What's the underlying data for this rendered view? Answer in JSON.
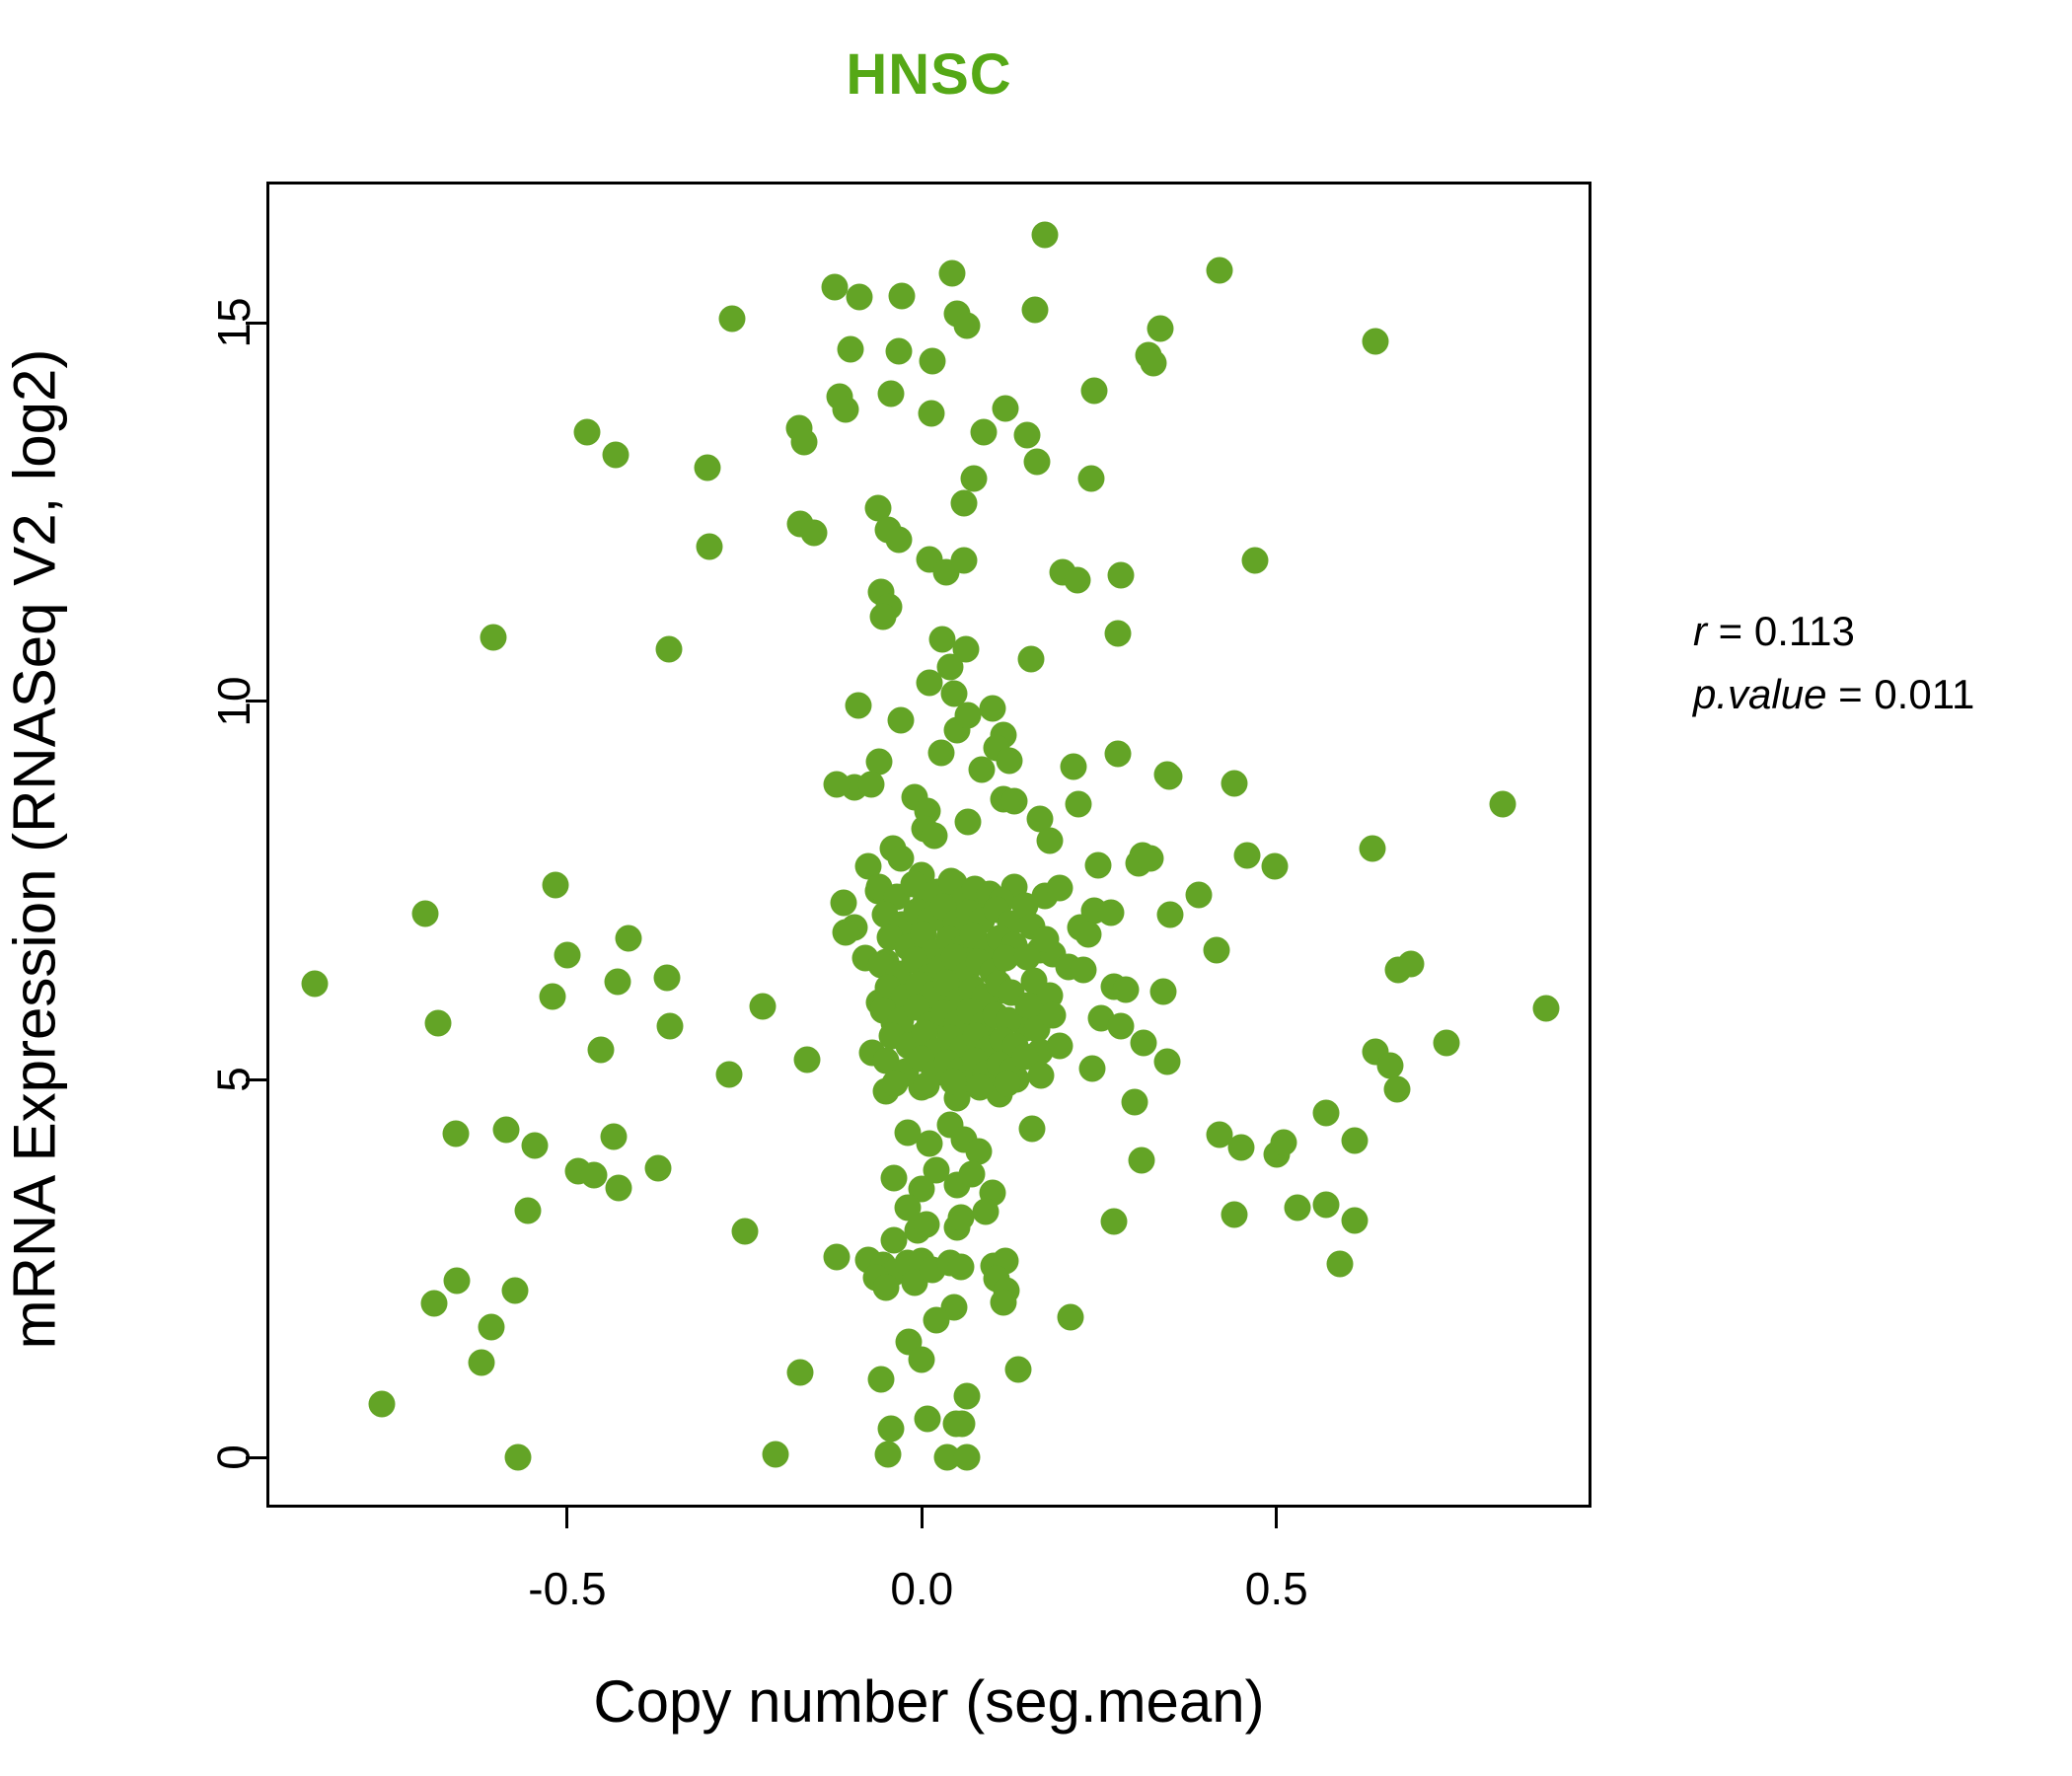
{
  "chart_data": {
    "type": "scatter",
    "title": "HNSC",
    "title_color": "#55a816",
    "xlabel": "Copy number (seg.mean)",
    "ylabel": "mRNA Expression (RNASeq V2, log2)",
    "xlim": [
      -0.92,
      0.94
    ],
    "ylim": [
      -0.62,
      16.83
    ],
    "xticks": [
      -0.5,
      0.0,
      0.5
    ],
    "xtick_labels": [
      "-0.5",
      "0.0",
      "0.5"
    ],
    "yticks": [
      0,
      5,
      10,
      15
    ],
    "ytick_labels": [
      "0",
      "5",
      "10",
      "15"
    ],
    "grid": false,
    "point_color": "#63a426",
    "annotation": {
      "line1": {
        "var": "r",
        "eq": " = ",
        "value": "0.113"
      },
      "line2": {
        "var": "p.value",
        "eq": " = ",
        "value": "0.011"
      }
    },
    "points": [
      [
        0.174,
        16.16
      ],
      [
        0.043,
        15.66
      ],
      [
        -0.123,
        15.47
      ],
      [
        -0.088,
        15.34
      ],
      [
        -0.028,
        15.36
      ],
      [
        0.159,
        15.18
      ],
      [
        -0.268,
        15.05
      ],
      [
        0.05,
        15.12
      ],
      [
        0.064,
        14.97
      ],
      [
        0.336,
        14.92
      ],
      [
        0.32,
        14.58
      ],
      [
        0.327,
        14.47
      ],
      [
        -0.1,
        14.65
      ],
      [
        -0.033,
        14.62
      ],
      [
        0.015,
        14.49
      ],
      [
        0.243,
        14.1
      ],
      [
        -0.116,
        14.02
      ],
      [
        -0.107,
        13.85
      ],
      [
        -0.044,
        14.06
      ],
      [
        0.013,
        13.8
      ],
      [
        0.42,
        15.7
      ],
      [
        0.64,
        14.75
      ],
      [
        -0.472,
        13.55
      ],
      [
        -0.432,
        13.26
      ],
      [
        -0.173,
        13.61
      ],
      [
        -0.166,
        13.42
      ],
      [
        -0.303,
        13.09
      ],
      [
        0.087,
        13.56
      ],
      [
        0.149,
        13.52
      ],
      [
        0.118,
        13.87
      ],
      [
        0.163,
        13.16
      ],
      [
        0.073,
        12.95
      ],
      [
        0.239,
        12.95
      ],
      [
        -0.062,
        12.55
      ],
      [
        -0.048,
        12.26
      ],
      [
        -0.033,
        12.13
      ],
      [
        -0.172,
        12.35
      ],
      [
        -0.152,
        12.22
      ],
      [
        -0.3,
        12.05
      ],
      [
        0.06,
        12.62
      ],
      [
        0.011,
        11.87
      ],
      [
        0.035,
        11.7
      ],
      [
        0.059,
        11.86
      ],
      [
        0.198,
        11.7
      ],
      [
        0.219,
        11.6
      ],
      [
        0.281,
        11.66
      ],
      [
        0.47,
        11.86
      ],
      [
        -0.058,
        11.44
      ],
      [
        -0.047,
        11.25
      ],
      [
        -0.055,
        11.12
      ],
      [
        0.029,
        10.82
      ],
      [
        0.062,
        10.69
      ],
      [
        0.277,
        10.9
      ],
      [
        0.154,
        10.56
      ],
      [
        -0.356,
        10.69
      ],
      [
        -0.604,
        10.84
      ],
      [
        0.01,
        10.25
      ],
      [
        0.045,
        10.1
      ],
      [
        0.1,
        9.9
      ],
      [
        -0.03,
        9.75
      ],
      [
        0.05,
        9.62
      ],
      [
        0.115,
        9.55
      ],
      [
        0.065,
        9.82
      ],
      [
        -0.09,
        9.95
      ],
      [
        0.04,
        10.45
      ],
      [
        0.028,
        9.32
      ],
      [
        0.105,
        9.38
      ],
      [
        0.124,
        9.22
      ],
      [
        0.277,
        9.31
      ],
      [
        0.346,
        9.03
      ],
      [
        0.084,
        9.09
      ],
      [
        0.214,
        9.13
      ],
      [
        0.349,
        9.0
      ],
      [
        0.441,
        8.92
      ],
      [
        -0.06,
        9.2
      ],
      [
        -0.095,
        8.86
      ],
      [
        -0.072,
        8.9
      ],
      [
        -0.01,
        8.73
      ],
      [
        0.008,
        8.55
      ],
      [
        0.115,
        8.7
      ],
      [
        0.131,
        8.68
      ],
      [
        0.221,
        8.64
      ],
      [
        0.819,
        8.64
      ],
      [
        0.167,
        8.44
      ],
      [
        -0.12,
        8.9
      ],
      [
        0.18,
        8.16
      ],
      [
        0.311,
        7.96
      ],
      [
        0.306,
        7.86
      ],
      [
        0.249,
        7.83
      ],
      [
        0.004,
        8.31
      ],
      [
        0.018,
        8.22
      ],
      [
        -0.041,
        8.05
      ],
      [
        -0.03,
        7.92
      ],
      [
        -0.076,
        7.82
      ],
      [
        0.636,
        8.05
      ],
      [
        0.458,
        7.96
      ],
      [
        0.498,
        7.82
      ],
      [
        0.322,
        7.92
      ],
      [
        0.065,
        8.4
      ],
      [
        -0.061,
        7.49
      ],
      [
        -0.111,
        7.34
      ],
      [
        -0.095,
        7.01
      ],
      [
        0.174,
        7.43
      ],
      [
        0.194,
        7.53
      ],
      [
        0.243,
        7.23
      ],
      [
        0.267,
        7.21
      ],
      [
        0.35,
        7.18
      ],
      [
        0.223,
        7.01
      ],
      [
        0.39,
        7.44
      ],
      [
        -0.7,
        7.19
      ],
      [
        -0.517,
        7.57
      ],
      [
        0.046,
        7.6
      ],
      [
        0.0,
        7.7
      ],
      [
        0.09,
        7.25
      ],
      [
        0.13,
        7.55
      ],
      [
        -0.107,
        6.95
      ],
      [
        0.235,
        6.92
      ],
      [
        0.166,
        6.71
      ],
      [
        0.184,
        6.66
      ],
      [
        0.207,
        6.49
      ],
      [
        0.228,
        6.45
      ],
      [
        -0.413,
        6.86
      ],
      [
        -0.5,
        6.65
      ],
      [
        0.416,
        6.71
      ],
      [
        0.672,
        6.45
      ],
      [
        0.69,
        6.53
      ],
      [
        -0.02,
        6.85
      ],
      [
        0.01,
        6.7
      ],
      [
        0.04,
        6.92
      ],
      [
        0.06,
        6.65
      ],
      [
        0.08,
        6.8
      ],
      [
        -0.05,
        6.55
      ],
      [
        0.1,
        6.48
      ],
      [
        0.02,
        6.45
      ],
      [
        -0.08,
        6.6
      ],
      [
        0.12,
        6.75
      ],
      [
        -0.856,
        6.27
      ],
      [
        -0.429,
        6.29
      ],
      [
        -0.36,
        6.34
      ],
      [
        0.271,
        6.23
      ],
      [
        0.288,
        6.19
      ],
      [
        0.34,
        6.16
      ],
      [
        0.163,
        5.98
      ],
      [
        0.181,
        6.11
      ],
      [
        0.88,
        5.94
      ],
      [
        -0.03,
        6.2
      ],
      [
        0.0,
        6.05
      ],
      [
        0.03,
        6.3
      ],
      [
        0.05,
        6.1
      ],
      [
        0.07,
        6.22
      ],
      [
        -0.06,
        6.02
      ],
      [
        0.09,
        5.95
      ],
      [
        0.11,
        6.18
      ],
      [
        -0.682,
        5.74
      ],
      [
        0.253,
        5.81
      ],
      [
        0.281,
        5.71
      ],
      [
        0.313,
        5.48
      ],
      [
        0.147,
        5.68
      ],
      [
        0.166,
        5.36
      ],
      [
        0.194,
        5.45
      ],
      [
        0.74,
        5.48
      ],
      [
        0.64,
        5.36
      ],
      [
        0.66,
        5.19
      ],
      [
        0.346,
        5.23
      ],
      [
        -0.04,
        5.75
      ],
      [
        -0.01,
        5.55
      ],
      [
        0.02,
        5.8
      ],
      [
        0.04,
        5.6
      ],
      [
        0.06,
        5.45
      ],
      [
        0.08,
        5.7
      ],
      [
        -0.07,
        5.35
      ],
      [
        0.1,
        5.5
      ],
      [
        -0.521,
        6.1
      ],
      [
        -0.452,
        5.39
      ],
      [
        -0.355,
        5.71
      ],
      [
        -0.272,
        5.06
      ],
      [
        -0.224,
        5.97
      ],
      [
        -0.162,
        5.26
      ],
      [
        0.101,
        5.16
      ],
      [
        0.133,
        5.0
      ],
      [
        0.67,
        4.87
      ],
      [
        0.57,
        4.56
      ],
      [
        0.24,
        5.15
      ],
      [
        0.3,
        4.7
      ],
      [
        -0.03,
        5.05
      ],
      [
        0.0,
        4.9
      ],
      [
        0.03,
        5.15
      ],
      [
        0.05,
        4.75
      ],
      [
        0.07,
        5.0
      ],
      [
        -0.05,
        4.85
      ],
      [
        0.09,
        4.95
      ],
      [
        0.11,
        4.8
      ],
      [
        -0.657,
        4.29
      ],
      [
        -0.586,
        4.33
      ],
      [
        -0.546,
        4.13
      ],
      [
        -0.434,
        4.25
      ],
      [
        0.42,
        4.27
      ],
      [
        0.45,
        4.1
      ],
      [
        0.5,
        4.01
      ],
      [
        0.51,
        4.16
      ],
      [
        0.61,
        4.19
      ],
      [
        -0.02,
        4.3
      ],
      [
        0.01,
        4.15
      ],
      [
        0.04,
        4.4
      ],
      [
        0.06,
        4.2
      ],
      [
        0.08,
        4.05
      ],
      [
        0.155,
        4.35
      ],
      [
        -0.484,
        3.79
      ],
      [
        -0.462,
        3.73
      ],
      [
        -0.427,
        3.57
      ],
      [
        -0.372,
        3.83
      ],
      [
        -0.04,
        3.7
      ],
      [
        0.0,
        3.55
      ],
      [
        0.02,
        3.8
      ],
      [
        0.05,
        3.6
      ],
      [
        0.07,
        3.75
      ],
      [
        0.1,
        3.5
      ],
      [
        0.31,
        3.93
      ],
      [
        -0.556,
        3.27
      ],
      [
        0.53,
        3.3
      ],
      [
        0.57,
        3.34
      ],
      [
        0.44,
        3.22
      ],
      [
        0.61,
        3.13
      ],
      [
        0.271,
        3.12
      ],
      [
        -0.006,
        3.01
      ],
      [
        0.007,
        3.08
      ],
      [
        0.05,
        3.05
      ],
      [
        0.055,
        3.18
      ],
      [
        -0.02,
        3.3
      ],
      [
        0.09,
        3.25
      ],
      [
        -0.249,
        2.99
      ],
      [
        -0.12,
        2.66
      ],
      [
        -0.04,
        2.88
      ],
      [
        -0.075,
        2.62
      ],
      [
        -0.055,
        2.55
      ],
      [
        -0.04,
        2.45
      ],
      [
        -0.065,
        2.38
      ],
      [
        -0.05,
        2.25
      ],
      [
        -0.02,
        2.58
      ],
      [
        0.0,
        2.6
      ],
      [
        -0.01,
        2.32
      ],
      [
        0.015,
        2.48
      ],
      [
        0.04,
        2.57
      ],
      [
        0.055,
        2.52
      ],
      [
        0.101,
        2.53
      ],
      [
        0.118,
        2.6
      ],
      [
        0.105,
        2.37
      ],
      [
        0.119,
        2.21
      ],
      [
        0.115,
        2.05
      ],
      [
        0.59,
        2.56
      ],
      [
        -0.655,
        2.34
      ],
      [
        -0.687,
        2.04
      ],
      [
        -0.574,
        2.21
      ],
      [
        0.209,
        1.86
      ],
      [
        0.046,
        1.99
      ],
      [
        0.021,
        1.82
      ],
      [
        -0.019,
        1.53
      ],
      [
        0.0,
        1.3
      ],
      [
        -0.172,
        1.13
      ],
      [
        -0.058,
        1.04
      ],
      [
        0.136,
        1.17
      ],
      [
        -0.607,
        1.73
      ],
      [
        -0.621,
        1.26
      ],
      [
        0.064,
        0.81
      ],
      [
        -0.761,
        0.71
      ],
      [
        0.008,
        0.52
      ],
      [
        0.048,
        0.45
      ],
      [
        0.057,
        0.45
      ],
      [
        -0.044,
        0.39
      ],
      [
        -0.048,
        0.04
      ],
      [
        -0.206,
        0.04
      ],
      [
        0.036,
        0.0
      ],
      [
        0.064,
        0.0
      ],
      [
        -0.57,
        0.0
      ],
      [
        -0.06,
        7.55
      ],
      [
        -0.035,
        7.42
      ],
      [
        -0.012,
        7.58
      ],
      [
        0.005,
        7.35
      ],
      [
        0.022,
        7.48
      ],
      [
        0.041,
        7.62
      ],
      [
        0.058,
        7.38
      ],
      [
        0.075,
        7.52
      ],
      [
        0.095,
        7.45
      ],
      [
        0.112,
        7.36
      ],
      [
        -0.052,
        7.18
      ],
      [
        -0.028,
        7.05
      ],
      [
        -0.008,
        7.22
      ],
      [
        0.012,
        7.12
      ],
      [
        0.03,
        7.28
      ],
      [
        0.048,
        7.08
      ],
      [
        0.066,
        7.2
      ],
      [
        0.085,
        7.1
      ],
      [
        0.105,
        7.24
      ],
      [
        0.125,
        7.06
      ],
      [
        -0.045,
        6.88
      ],
      [
        -0.02,
        6.75
      ],
      [
        0.002,
        6.92
      ],
      [
        0.018,
        6.68
      ],
      [
        0.038,
        6.85
      ],
      [
        0.055,
        6.72
      ],
      [
        0.072,
        6.9
      ],
      [
        0.092,
        6.7
      ],
      [
        0.11,
        6.86
      ],
      [
        0.13,
        6.78
      ],
      [
        -0.058,
        6.52
      ],
      [
        -0.032,
        6.4
      ],
      [
        -0.01,
        6.58
      ],
      [
        0.008,
        6.35
      ],
      [
        0.028,
        6.48
      ],
      [
        0.045,
        6.62
      ],
      [
        0.062,
        6.38
      ],
      [
        0.08,
        6.55
      ],
      [
        0.1,
        6.42
      ],
      [
        0.118,
        6.6
      ],
      [
        -0.048,
        6.22
      ],
      [
        -0.025,
        6.08
      ],
      [
        -0.005,
        6.25
      ],
      [
        0.015,
        6.12
      ],
      [
        0.035,
        6.28
      ],
      [
        0.052,
        6.05
      ],
      [
        0.07,
        6.18
      ],
      [
        0.088,
        6.1
      ],
      [
        0.108,
        6.26
      ],
      [
        0.126,
        6.15
      ],
      [
        -0.055,
        5.92
      ],
      [
        -0.03,
        5.78
      ],
      [
        -0.008,
        5.95
      ],
      [
        0.01,
        5.72
      ],
      [
        0.032,
        5.88
      ],
      [
        0.05,
        5.75
      ],
      [
        0.068,
        5.9
      ],
      [
        0.086,
        5.72
      ],
      [
        0.104,
        5.85
      ],
      [
        0.122,
        5.78
      ],
      [
        -0.042,
        5.58
      ],
      [
        -0.018,
        5.45
      ],
      [
        0.004,
        5.62
      ],
      [
        0.02,
        5.38
      ],
      [
        0.04,
        5.55
      ],
      [
        0.058,
        5.42
      ],
      [
        0.076,
        5.58
      ],
      [
        0.094,
        5.4
      ],
      [
        0.114,
        5.52
      ],
      [
        0.132,
        5.45
      ],
      [
        -0.05,
        5.25
      ],
      [
        -0.022,
        5.1
      ],
      [
        0.0,
        5.28
      ],
      [
        0.018,
        5.08
      ],
      [
        0.036,
        5.22
      ],
      [
        0.054,
        5.12
      ],
      [
        0.074,
        5.25
      ],
      [
        0.09,
        5.08
      ],
      [
        0.11,
        5.2
      ],
      [
        0.128,
        5.12
      ],
      [
        -0.038,
        4.95
      ],
      [
        0.006,
        4.92
      ],
      [
        0.044,
        4.98
      ],
      [
        0.082,
        4.9
      ],
      [
        0.12,
        4.95
      ],
      [
        0.145,
        7.3
      ],
      [
        0.155,
        7.02
      ],
      [
        0.148,
        6.62
      ],
      [
        0.158,
        6.3
      ],
      [
        0.15,
        5.98
      ],
      [
        0.162,
        5.66
      ],
      [
        0.146,
        5.3
      ],
      [
        0.168,
        5.05
      ],
      [
        0.175,
        6.85
      ],
      [
        0.185,
        5.85
      ]
    ]
  }
}
